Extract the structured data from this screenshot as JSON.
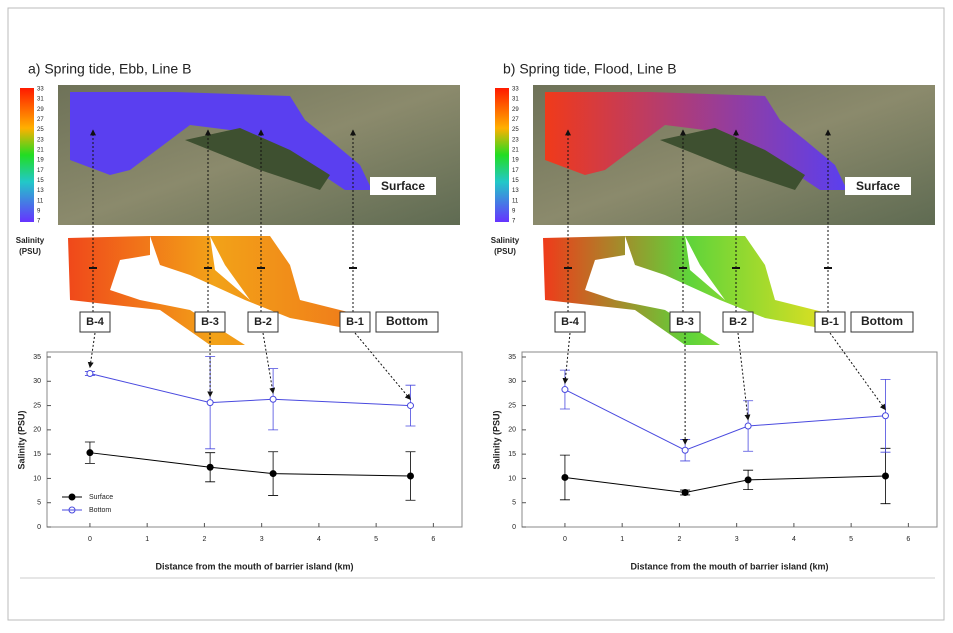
{
  "chart_data": [
    {
      "type": "line",
      "title": "a) Spring tide, Ebb, Line B",
      "colorbar_ticks": [
        33,
        31,
        29,
        27,
        25,
        23,
        21,
        19,
        17,
        15,
        13,
        11,
        9,
        7
      ],
      "colorbar_label": [
        "Salinity",
        "(PSU)"
      ],
      "surface_label": "Surface",
      "bottom_label": "Bottom",
      "stations": [
        "B-4",
        "B-3",
        "B-2",
        "B-1"
      ],
      "x": [
        0,
        2.1,
        3.2,
        5.6
      ],
      "series": [
        {
          "name": "Surface",
          "color": "#000000",
          "filled": true,
          "values": [
            15.3,
            12.3,
            11,
            10.5
          ],
          "errors": [
            2.2,
            3,
            4.5,
            5
          ]
        },
        {
          "name": "Bottom",
          "color": "#4a4adf",
          "filled": false,
          "values": [
            31.6,
            25.6,
            26.3,
            25
          ],
          "errors": [
            0.4,
            9.5,
            6.3,
            4.2
          ]
        }
      ],
      "xlim": [
        -0.75,
        6.5
      ],
      "ylim": [
        0,
        35
      ],
      "xticks": [
        0,
        1,
        2,
        3,
        4,
        5,
        6
      ],
      "yticks": [
        0,
        5,
        10,
        15,
        20,
        25,
        30,
        35
      ],
      "xlabel": "Distance from the mouth of barrier island (km)",
      "ylabel": "Salinity (PSU)",
      "legend": "lower left",
      "water": [
        "#5a3ff0",
        "#5a3ff0"
      ],
      "bottom_water": [
        "#f0481a",
        "#f2a218",
        "#f07a1a"
      ]
    },
    {
      "type": "line",
      "title": "b) Spring tide, Flood, Line B",
      "colorbar_ticks": [
        33,
        31,
        29,
        27,
        25,
        23,
        21,
        19,
        17,
        15,
        13,
        11,
        9,
        7
      ],
      "colorbar_label": [
        "Salinity",
        "(PSU)"
      ],
      "surface_label": "Surface",
      "bottom_label": "Bottom",
      "stations": [
        "B-4",
        "B-3",
        "B-2",
        "B-1"
      ],
      "x": [
        0,
        2.1,
        3.2,
        5.6
      ],
      "series": [
        {
          "color": "#000000",
          "filled": true,
          "values": [
            10.2,
            7.1,
            9.7,
            10.5
          ],
          "errors": [
            4.6,
            0.5,
            2,
            5.7
          ]
        },
        {
          "color": "#4a4adf",
          "filled": false,
          "values": [
            28.3,
            15.8,
            20.8,
            22.9
          ],
          "errors": [
            4,
            2.2,
            5.2,
            7.5
          ]
        }
      ],
      "xlim": [
        -0.75,
        6.5
      ],
      "ylim": [
        0,
        35
      ],
      "xticks": [
        0,
        1,
        2,
        3,
        4,
        5,
        6
      ],
      "yticks": [
        0,
        5,
        10,
        15,
        20,
        25,
        30,
        35
      ],
      "xlabel": "Distance from the mouth of barrier island (km)",
      "ylabel": "Salinity (PSU)",
      "water": [
        "#f03a1a",
        "#5a3ff0"
      ],
      "bottom_water": [
        "#f03a1a",
        "#5fd43a",
        "#e6e020"
      ]
    }
  ]
}
